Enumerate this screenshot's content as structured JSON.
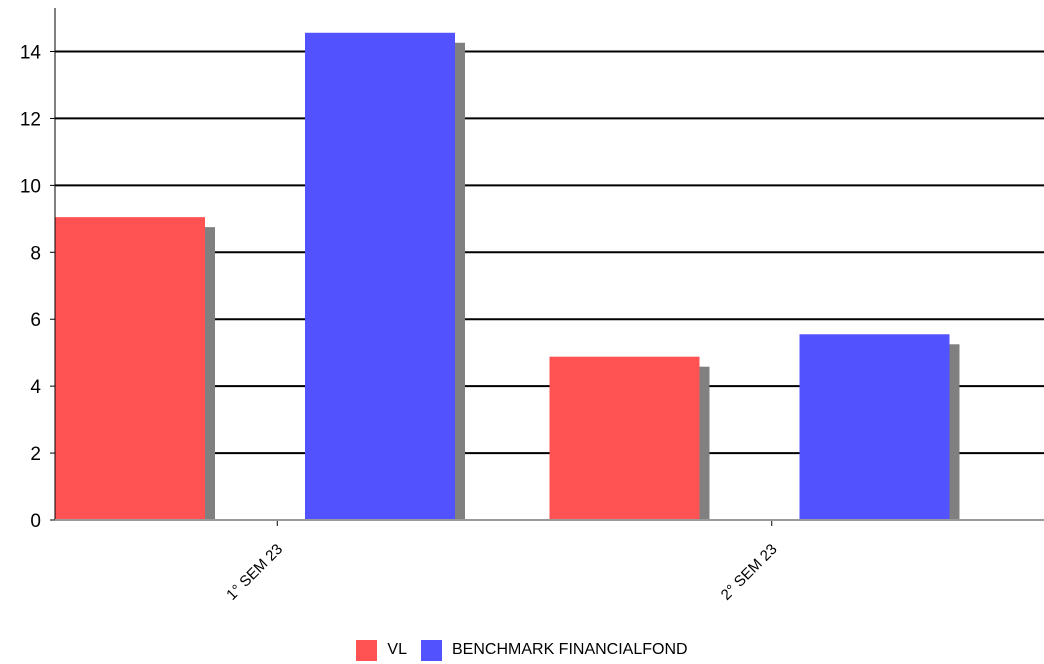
{
  "chart_data": {
    "type": "bar",
    "categories": [
      "1° SEM 23",
      "2° SEM 23"
    ],
    "series": [
      {
        "name": "VL",
        "values": [
          9.05,
          4.88
        ],
        "color": "#ff5252"
      },
      {
        "name": "BENCHMARK FINANCIALFOND",
        "values": [
          14.56,
          5.55
        ],
        "color": "#5252ff"
      }
    ],
    "ylim": [
      0,
      15.3
    ],
    "yticks": [
      0,
      2,
      4,
      6,
      8,
      10,
      12,
      14
    ],
    "grid": true,
    "legend": "bottom-center",
    "shadow_color": "#808080"
  }
}
